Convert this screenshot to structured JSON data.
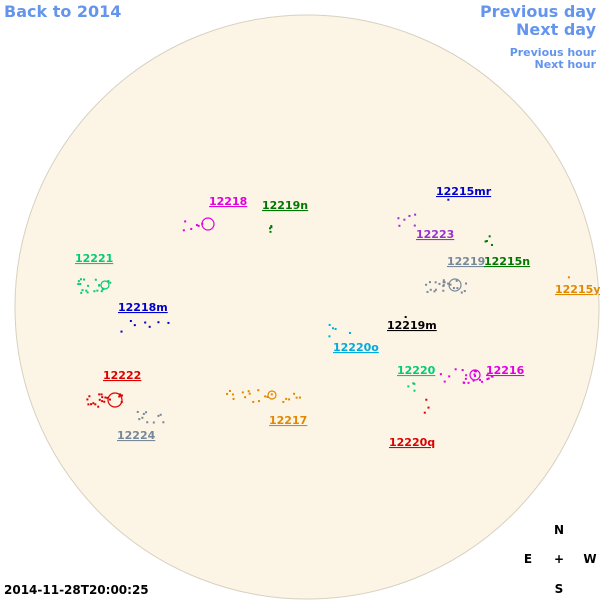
{
  "nav": {
    "back": "Back to 2014",
    "previous_day": "Previous day",
    "next_day": "Next day",
    "previous_hour": "Previous hour",
    "next_hour": "Next hour"
  },
  "regions": [
    {
      "label": "12218",
      "color": "#e000e0"
    },
    {
      "label": "12219n",
      "color": "#007700"
    },
    {
      "label": "12215mr",
      "color": "#0000cc"
    },
    {
      "label": "12223",
      "color": "#9933cc"
    },
    {
      "label": "12219",
      "color": "#778899"
    },
    {
      "label": "12215n",
      "color": "#007700"
    },
    {
      "label": "12221",
      "color": "#00cc77"
    },
    {
      "label": "12218m",
      "color": "#0000cc"
    },
    {
      "label": "12215y",
      "color": "#e08800"
    },
    {
      "label": "12219m",
      "color": "#000000"
    },
    {
      "label": "12220o",
      "color": "#00aadd"
    },
    {
      "label": "12220",
      "color": "#00cc77"
    },
    {
      "label": "12216",
      "color": "#e000e0"
    },
    {
      "label": "12222",
      "color": "#dd0000"
    },
    {
      "label": "12224",
      "color": "#778899"
    },
    {
      "label": "12217",
      "color": "#e08800"
    },
    {
      "label": "12220q",
      "color": "#dd0000"
    }
  ],
  "compass": {
    "north": "N",
    "east": "E",
    "center": "+",
    "west": "W",
    "south": "S"
  },
  "timestamp": "2014-11-28T20:00:25"
}
